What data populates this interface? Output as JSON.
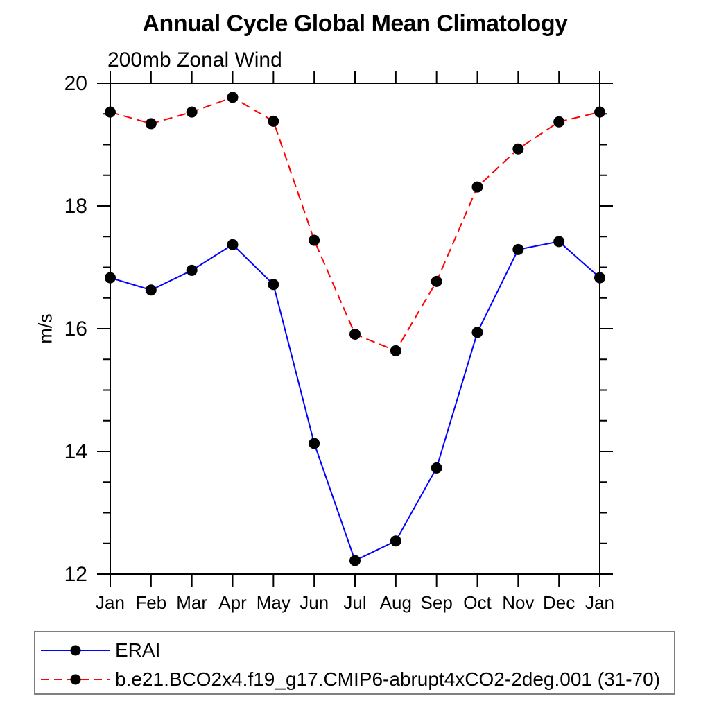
{
  "chart_data": {
    "type": "line",
    "title": "Annual Cycle Global Mean Climatology",
    "subtitle": "200mb Zonal Wind",
    "ylabel": "m/s",
    "x_categories": [
      "Jan",
      "Feb",
      "Mar",
      "Apr",
      "May",
      "Jun",
      "Jul",
      "Aug",
      "Sep",
      "Oct",
      "Nov",
      "Dec",
      "Jan"
    ],
    "ylim": [
      12,
      20
    ],
    "yticks": [
      12,
      14,
      16,
      18,
      20
    ],
    "ytick_labels": [
      "12",
      "14",
      "16",
      "18",
      "20"
    ],
    "yminor_step": 0.5,
    "grid": false,
    "legend_position": "bottom-left-box",
    "axis_color": "#000000",
    "marker_shape": "filled-circle",
    "series": [
      {
        "name": "ERAI",
        "line_color": "#0000ff",
        "line_style": "solid",
        "marker_color": "#000000",
        "values": [
          16.83,
          16.63,
          16.95,
          17.37,
          16.72,
          14.13,
          12.22,
          12.54,
          13.73,
          15.94,
          17.29,
          17.42,
          16.83
        ]
      },
      {
        "name": "b.e21.BCO2x4.f19_g17.CMIP6-abrupt4xCO2-2deg.001 (31-70)",
        "line_color": "#ff0000",
        "line_style": "dashed",
        "marker_color": "#000000",
        "values": [
          19.53,
          19.34,
          19.53,
          19.77,
          19.38,
          17.44,
          15.91,
          15.64,
          16.77,
          18.31,
          18.93,
          19.37,
          19.53
        ]
      }
    ]
  }
}
